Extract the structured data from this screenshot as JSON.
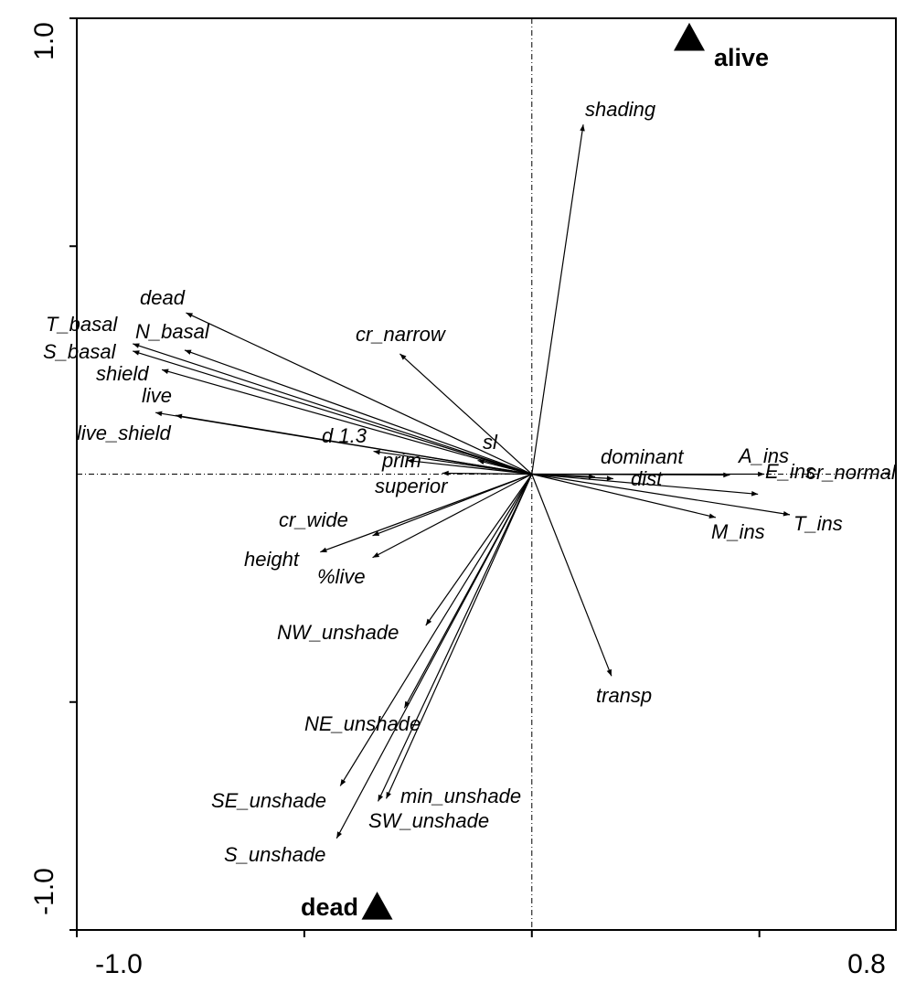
{
  "chart_data": {
    "type": "scatter",
    "subtype": "ordination-biplot",
    "title": "",
    "xlabel": "",
    "ylabel": "",
    "xlim": [
      -1.0,
      0.8
    ],
    "ylim": [
      -1.0,
      1.0
    ],
    "x_tick_labels": [
      "-1.0",
      "0.8"
    ],
    "y_tick_labels": [
      "1.0",
      "-1.0"
    ],
    "grid": false,
    "zero_lines": true,
    "vectors": [
      {
        "name": "dead",
        "x": -0.76,
        "y": 0.354
      },
      {
        "name": "T_basal",
        "x": -0.877,
        "y": 0.286
      },
      {
        "name": "N_basal",
        "x": -0.763,
        "y": 0.272
      },
      {
        "name": "S_basal",
        "x": -0.877,
        "y": 0.27
      },
      {
        "name": "shield",
        "x": -0.813,
        "y": 0.229
      },
      {
        "name": "live",
        "x": -0.827,
        "y": 0.135
      },
      {
        "name": "live_shield",
        "x": -0.783,
        "y": 0.129
      },
      {
        "name": "d 1.3",
        "x": -0.348,
        "y": 0.05
      },
      {
        "name": "prim",
        "x": -0.274,
        "y": 0.03
      },
      {
        "name": "superior",
        "x": -0.197,
        "y": 0.002
      },
      {
        "name": "sl",
        "x": -0.119,
        "y": 0.03
      },
      {
        "name": "cr_narrow",
        "x": -0.29,
        "y": 0.264
      },
      {
        "name": "shading",
        "x": 0.113,
        "y": 0.767
      },
      {
        "name": "dominant",
        "x": 0.435,
        "y": -0.002
      },
      {
        "name": "A_ins",
        "x": 0.511,
        "y": 0.0
      },
      {
        "name": "cr_normal",
        "x": 0.139,
        "y": -0.006
      },
      {
        "name": "dist",
        "x": 0.179,
        "y": -0.01
      },
      {
        "name": "E_ins",
        "x": 0.497,
        "y": -0.044
      },
      {
        "name": "T_ins",
        "x": 0.567,
        "y": -0.089
      },
      {
        "name": "M_ins",
        "x": 0.404,
        "y": -0.095
      },
      {
        "name": "transp",
        "x": 0.175,
        "y": -0.443
      },
      {
        "name": "cr_wide",
        "x": -0.35,
        "y": -0.135
      },
      {
        "name": "height",
        "x": -0.465,
        "y": -0.171
      },
      {
        "name": "%live",
        "x": -0.35,
        "y": -0.183
      },
      {
        "name": "NW_unshade",
        "x": -0.233,
        "y": -0.332
      },
      {
        "name": "NE_unshade",
        "x": -0.28,
        "y": -0.513
      },
      {
        "name": "SE_unshade",
        "x": -0.421,
        "y": -0.684
      },
      {
        "name": "S_unshade",
        "x": -0.429,
        "y": -0.799
      },
      {
        "name": "SW_unshade",
        "x": -0.338,
        "y": -0.718
      },
      {
        "name": "min_unshade",
        "x": -0.32,
        "y": -0.712
      }
    ],
    "points": [
      {
        "name": "alive",
        "x": 0.346,
        "y": 0.956,
        "marker": "triangle"
      },
      {
        "name": "dead",
        "x": -0.34,
        "y": -0.95,
        "marker": "triangle"
      }
    ]
  }
}
